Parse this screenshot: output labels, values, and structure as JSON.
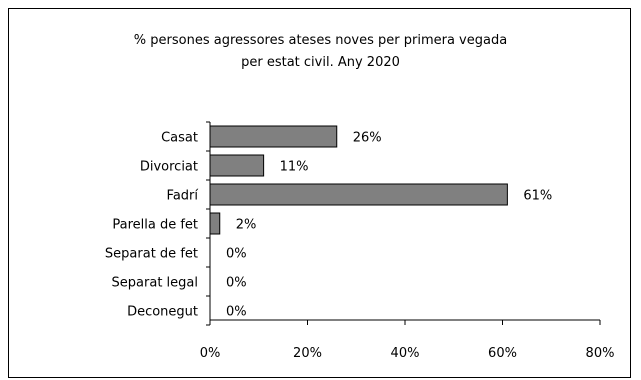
{
  "chart_data": {
    "type": "bar",
    "orientation": "horizontal",
    "title_lines": [
      "%  persones agressores ateses noves per primera vegada",
      "per estat civil. Any 2020"
    ],
    "categories": [
      "Casat",
      "Divorciat",
      "Fadrí",
      "Parella de fet",
      "Separat de fet",
      "Separat legal",
      "Deconegut"
    ],
    "values": [
      26,
      11,
      61,
      2,
      0,
      0,
      0
    ],
    "data_labels": [
      "26%",
      "11%",
      "61%",
      "2%",
      "0%",
      "0%",
      "0%"
    ],
    "xlim": [
      0,
      80
    ],
    "xticks": [
      0,
      20,
      40,
      60,
      80
    ],
    "xtick_labels": [
      "0%",
      "20%",
      "40%",
      "60%",
      "80%"
    ],
    "grid": false,
    "legend": "none",
    "bar_color": "#808080",
    "bar_edge_color": "#000000"
  }
}
